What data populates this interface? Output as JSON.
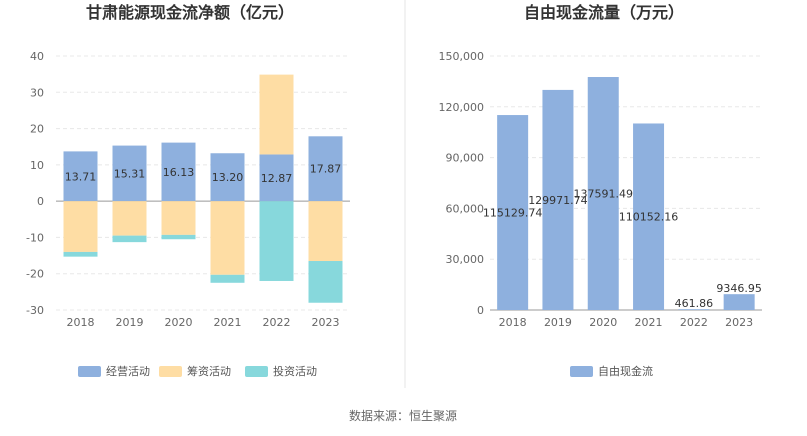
{
  "chart_data": [
    {
      "type": "bar",
      "stacked": true,
      "title": "甘肃能源现金流净额（亿元）",
      "categories": [
        "2018",
        "2019",
        "2020",
        "2021",
        "2022",
        "2023"
      ],
      "ylim": [
        -30,
        40
      ],
      "yticks": [
        "40",
        "30",
        "20",
        "10",
        "0",
        "-10",
        "-20",
        "-30"
      ],
      "grid": true,
      "legend_position": "bottom",
      "series": [
        {
          "name": "经营活动",
          "color": "#8eb0de",
          "values": [
            13.71,
            15.31,
            16.13,
            13.2,
            12.87,
            17.87
          ],
          "labels": [
            "13.71",
            "15.31",
            "16.13",
            "13.20",
            "12.87",
            "17.87"
          ]
        },
        {
          "name": "筹资活动",
          "color": "#fedda4",
          "values": [
            -14.0,
            -9.5,
            -9.3,
            -20.3,
            22.0,
            -16.5
          ]
        },
        {
          "name": "投资活动",
          "color": "#87d8dc",
          "values": [
            -1.3,
            -1.8,
            -1.2,
            -2.2,
            -22.0,
            -11.5
          ]
        }
      ]
    },
    {
      "type": "bar",
      "title": "自由现金流量（万元）",
      "categories": [
        "2018",
        "2019",
        "2020",
        "2021",
        "2022",
        "2023"
      ],
      "ylim": [
        0,
        150000
      ],
      "yticks": [
        "150,000",
        "120,000",
        "90,000",
        "60,000",
        "30,000",
        "0"
      ],
      "grid": true,
      "legend_position": "bottom",
      "series": [
        {
          "name": "自由现金流",
          "color": "#8eb0de",
          "values": [
            115129.74,
            129971.74,
            137591.49,
            110152.16,
            461.86,
            9346.95
          ],
          "labels": [
            "115129.74",
            "129971.74",
            "137591.49",
            "110152.16",
            "461.86",
            "9346.95"
          ]
        }
      ]
    }
  ],
  "footer": {
    "source": "数据来源：恒生聚源"
  }
}
